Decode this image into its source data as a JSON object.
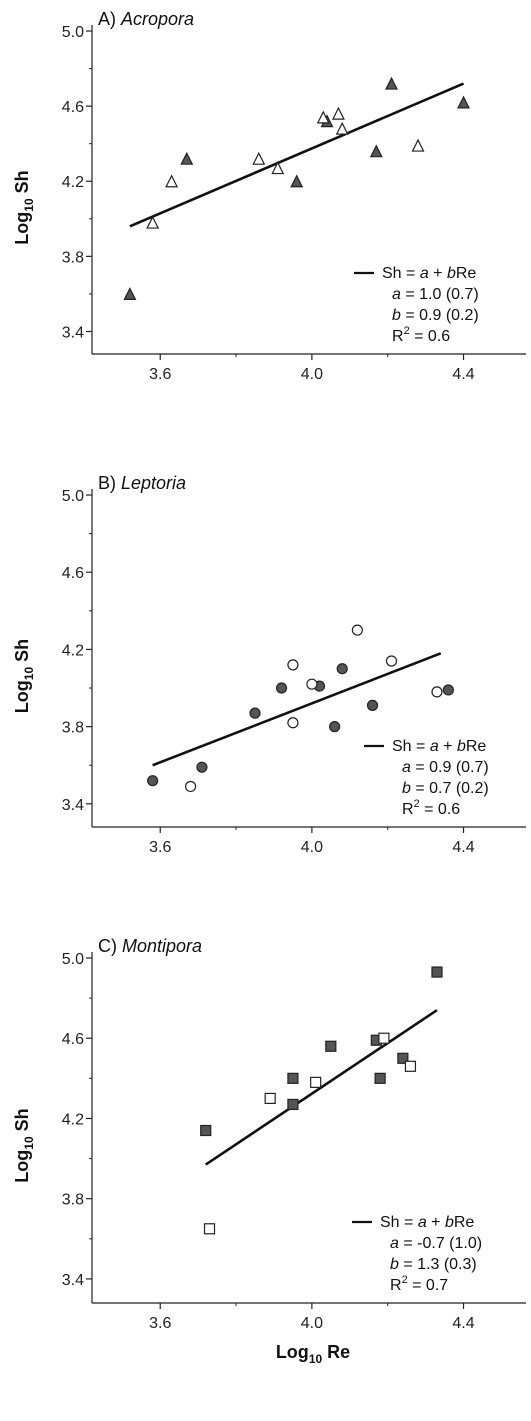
{
  "chart_data": [
    {
      "type": "scatter",
      "panel_letter": "A)",
      "title": "Acropora",
      "xlabel": "",
      "ylabel": "Log",
      "ylabel_sub": "10",
      "ylabel_tail": "Sh",
      "xlim": [
        3.42,
        4.52
      ],
      "ylim": [
        3.28,
        5.0
      ],
      "xticks": [
        "3.6",
        "4.0",
        "4.4"
      ],
      "yticks": [
        "5.0",
        "4.6",
        "4.2",
        "3.8",
        "3.4"
      ],
      "marker": "triangle",
      "fit": {
        "x": [
          3.52,
          4.4
        ],
        "y": [
          3.96,
          4.72
        ]
      },
      "series": [
        {
          "fill": "#555555",
          "x": [
            3.52,
            3.67,
            3.96,
            4.04,
            4.17,
            4.21,
            4.4
          ],
          "y": [
            3.6,
            4.32,
            4.2,
            4.52,
            4.36,
            4.72,
            4.62
          ]
        },
        {
          "fill": "#ffffff",
          "x": [
            3.58,
            3.63,
            3.86,
            3.91,
            4.03,
            4.07,
            4.08,
            4.28
          ],
          "y": [
            3.98,
            4.2,
            4.32,
            4.27,
            4.54,
            4.56,
            4.48,
            4.39
          ]
        }
      ],
      "legend": {
        "eq_lhs": "Sh = ",
        "eq_a": "a",
        "eq_mid": " + ",
        "eq_b": "b",
        "eq_re": "Re",
        "a_line": " = 1.0 (0.7)",
        "b_line": " = 0.9 (0.2)",
        "r2_lhs": "R",
        "r2_sup": "2",
        "r2_rhs": " = 0.6"
      }
    },
    {
      "type": "scatter",
      "panel_letter": "B)",
      "title": "Leptoria",
      "xlabel": "",
      "ylabel": "Log",
      "ylabel_sub": "10",
      "ylabel_tail": "Sh",
      "xlim": [
        3.42,
        4.52
      ],
      "ylim": [
        3.28,
        5.0
      ],
      "xticks": [
        "3.6",
        "4.0",
        "4.4"
      ],
      "yticks": [
        "5.0",
        "4.6",
        "4.2",
        "3.8",
        "3.4"
      ],
      "marker": "circle",
      "fit": {
        "x": [
          3.58,
          4.34
        ],
        "y": [
          3.6,
          4.18
        ]
      },
      "series": [
        {
          "fill": "#555555",
          "x": [
            3.58,
            3.71,
            3.85,
            3.92,
            4.02,
            4.06,
            4.08,
            4.16,
            4.36
          ],
          "y": [
            3.52,
            3.59,
            3.87,
            4.0,
            4.01,
            3.8,
            4.1,
            3.91,
            3.99
          ]
        },
        {
          "fill": "#ffffff",
          "x": [
            3.68,
            3.95,
            3.95,
            4.0,
            4.12,
            4.21,
            4.33
          ],
          "y": [
            3.49,
            4.12,
            3.82,
            4.02,
            4.3,
            4.14,
            3.98
          ]
        }
      ],
      "legend": {
        "eq_lhs": "Sh = ",
        "eq_a": "a",
        "eq_mid": " + ",
        "eq_b": "b",
        "eq_re": "Re",
        "a_line": " = 0.9 (0.7)",
        "b_line": " = 0.7 (0.2)",
        "r2_lhs": "R",
        "r2_sup": "2",
        "r2_rhs": " = 0.6"
      }
    },
    {
      "type": "scatter",
      "panel_letter": "C)",
      "title": "Montipora",
      "xlabel": "Log",
      "xlabel_sub": "10",
      "xlabel_tail": "Re",
      "ylabel": "Log",
      "ylabel_sub": "10",
      "ylabel_tail": "Sh",
      "xlim": [
        3.42,
        4.52
      ],
      "ylim": [
        3.28,
        5.0
      ],
      "xticks": [
        "3.6",
        "4.0",
        "4.4"
      ],
      "yticks": [
        "5.0",
        "4.6",
        "4.2",
        "3.8",
        "3.4"
      ],
      "marker": "square",
      "fit": {
        "x": [
          3.72,
          4.33
        ],
        "y": [
          3.97,
          4.74
        ]
      },
      "series": [
        {
          "fill": "#555555",
          "x": [
            3.72,
            3.95,
            3.95,
            4.05,
            4.17,
            4.18,
            4.24,
            4.33
          ],
          "y": [
            4.14,
            4.4,
            4.27,
            4.56,
            4.59,
            4.4,
            4.5,
            4.93
          ]
        },
        {
          "fill": "#ffffff",
          "x": [
            3.73,
            3.89,
            4.01,
            4.19,
            4.26
          ],
          "y": [
            3.65,
            4.3,
            4.38,
            4.6,
            4.46
          ]
        }
      ],
      "legend": {
        "eq_lhs": "Sh = ",
        "eq_a": "a",
        "eq_mid": " + ",
        "eq_b": "b",
        "eq_re": "Re",
        "a_line": " = -0.7 (1.0)",
        "b_line": " = 1.3 (0.3)",
        "r2_lhs": "R",
        "r2_sup": "2",
        "r2_rhs": " = 0.7"
      }
    }
  ]
}
